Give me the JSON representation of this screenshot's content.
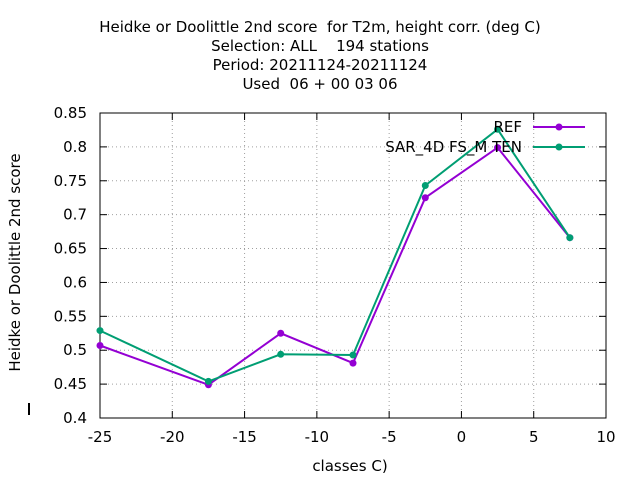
{
  "chart_data": {
    "type": "line",
    "title_lines": [
      "Heidke or Doolittle 2nd score  for T2m, height corr. (deg C)",
      "Selection: ALL    194 stations",
      "Period: 20211124-20211124",
      "Used  06 + 00 03 06"
    ],
    "xlabel": "classes C)",
    "ylabel": "Heidke or Doolittle 2nd score",
    "xlim": [
      -25,
      10
    ],
    "ylim": [
      0.4,
      0.85
    ],
    "xticks": [
      -25,
      -20,
      -15,
      -10,
      -5,
      0,
      5,
      10
    ],
    "yticks": [
      0.4,
      0.45,
      0.5,
      0.55,
      0.6,
      0.65,
      0.7,
      0.75,
      0.8,
      0.85
    ],
    "xtick_labels": [
      "-25",
      "-20",
      "-15",
      "-10",
      "-5",
      "0",
      "5",
      "10"
    ],
    "ytick_labels": [
      "0.4",
      "0.45",
      "0.5",
      "0.55",
      "0.6",
      "0.65",
      "0.7",
      "0.75",
      "0.8",
      "0.85"
    ],
    "grid": true,
    "legend_position": "top-right",
    "series": [
      {
        "name": "REF",
        "color": "#9400d3",
        "x": [
          -25,
          -17.5,
          -12.5,
          -7.5,
          -2.5,
          2.5,
          7.5
        ],
        "y": [
          0.507,
          0.449,
          0.525,
          0.481,
          0.725,
          0.799,
          0.666
        ]
      },
      {
        "name": "SAR_4D FS_M TEN",
        "color": "#009e73",
        "x": [
          -25,
          -17.5,
          -12.5,
          -7.5,
          -2.5,
          2.5,
          7.5
        ],
        "y": [
          0.529,
          0.454,
          0.494,
          0.493,
          0.743,
          0.826,
          0.666
        ]
      }
    ]
  }
}
